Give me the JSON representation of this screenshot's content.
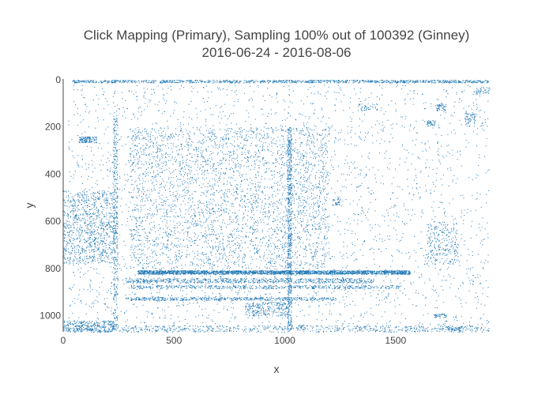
{
  "chart_data": {
    "type": "scatter",
    "title_line1": "Click Mapping (Primary), Sampling 100% out of 100392 (Ginney)",
    "title_line2": "2016-06-24 - 2016-08-06",
    "xlabel": "x",
    "ylabel": "y",
    "xlim": [
      0,
      1925
    ],
    "ylim": [
      1068,
      0
    ],
    "y_reversed": true,
    "x_ticks": [
      "0",
      "500",
      "1000",
      "1500"
    ],
    "x_tick_values": [
      0,
      500,
      1000,
      1500
    ],
    "y_ticks": [
      "0",
      "200",
      "400",
      "600",
      "800",
      "1000"
    ],
    "y_tick_values": [
      0,
      200,
      400,
      600,
      800,
      1000
    ],
    "grid": false,
    "marker_color": "#1f77b4",
    "total_points": 100392,
    "density_regions": [
      {
        "x": [
          20,
          1920
        ],
        "y": [
          20,
          1060
        ],
        "weight": 14000
      },
      {
        "x": [
          300,
          1200
        ],
        "y": [
          200,
          800
        ],
        "weight": 14000
      },
      {
        "x": [
          0,
          230
        ],
        "y": [
          470,
          780
        ],
        "weight": 4500
      },
      {
        "x": [
          1640,
          1780
        ],
        "y": [
          600,
          780
        ],
        "weight": 1200
      },
      {
        "x": [
          40,
          1920
        ],
        "y": [
          0,
          12
        ],
        "weight": 5500
      },
      {
        "x": [
          335,
          1565
        ],
        "y": [
          807,
          823
        ],
        "weight": 11000
      },
      {
        "x": [
          280,
          1400
        ],
        "y": [
          840,
          860
        ],
        "weight": 3500
      },
      {
        "x": [
          300,
          1520
        ],
        "y": [
          870,
          884
        ],
        "weight": 2500
      },
      {
        "x": [
          280,
          1230
        ],
        "y": [
          920,
          934
        ],
        "weight": 2500
      },
      {
        "x": [
          1010,
          1030
        ],
        "y": [
          200,
          1060
        ],
        "weight": 3000
      },
      {
        "x": [
          225,
          245
        ],
        "y": [
          150,
          1060
        ],
        "weight": 1800
      },
      {
        "x": [
          40,
          1920
        ],
        "y": [
          1040,
          1068
        ],
        "weight": 3500
      },
      {
        "x": [
          0,
          230
        ],
        "y": [
          1020,
          1068
        ],
        "weight": 1500
      },
      {
        "x": [
          70,
          150
        ],
        "y": [
          240,
          265
        ],
        "weight": 600
      },
      {
        "x": [
          820,
          1010
        ],
        "y": [
          940,
          1000
        ],
        "weight": 1200
      },
      {
        "x": [
          1680,
          1730
        ],
        "y": [
          100,
          130
        ],
        "weight": 250
      },
      {
        "x": [
          1640,
          1680
        ],
        "y": [
          170,
          195
        ],
        "weight": 200
      },
      {
        "x": [
          1810,
          1860
        ],
        "y": [
          140,
          200
        ],
        "weight": 300
      },
      {
        "x": [
          1860,
          1925
        ],
        "y": [
          30,
          60
        ],
        "weight": 200
      },
      {
        "x": [
          1330,
          1420
        ],
        "y": [
          100,
          130
        ],
        "weight": 200
      },
      {
        "x": [
          1215,
          1250
        ],
        "y": [
          495,
          530
        ],
        "weight": 150
      },
      {
        "x": [
          1670,
          1730
        ],
        "y": [
          990,
          1010
        ],
        "weight": 200
      },
      {
        "x": [
          1730,
          1800
        ],
        "y": [
          1040,
          1068
        ],
        "weight": 250
      }
    ]
  }
}
